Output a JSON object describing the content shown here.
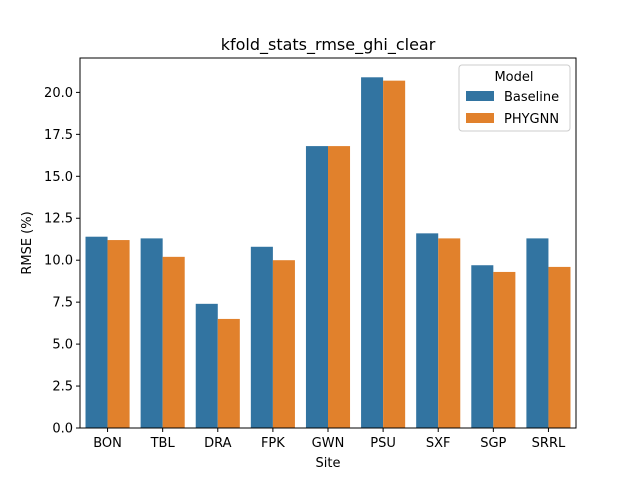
{
  "chart_data": {
    "type": "bar",
    "title": "kfold_stats_rmse_ghi_clear",
    "xlabel": "Site",
    "ylabel": "RMSE (%)",
    "categories": [
      "BON",
      "TBL",
      "DRA",
      "FPK",
      "GWN",
      "PSU",
      "SXF",
      "SGP",
      "SRRL"
    ],
    "series": [
      {
        "name": "Baseline",
        "color": "#3274a1",
        "values": [
          11.4,
          11.3,
          7.4,
          10.8,
          16.8,
          20.9,
          11.6,
          9.7,
          11.3
        ]
      },
      {
        "name": "PHYGNN",
        "color": "#e1812c",
        "values": [
          11.2,
          10.2,
          6.5,
          10.0,
          16.8,
          20.7,
          11.3,
          9.3,
          9.6
        ]
      }
    ],
    "ylim": [
      0,
      22.05
    ],
    "yticks": [
      "0.0",
      "2.5",
      "5.0",
      "7.5",
      "10.0",
      "12.5",
      "15.0",
      "17.5",
      "20.0"
    ],
    "grid": false,
    "legend": {
      "title": "Model",
      "placement": "top-right"
    }
  }
}
